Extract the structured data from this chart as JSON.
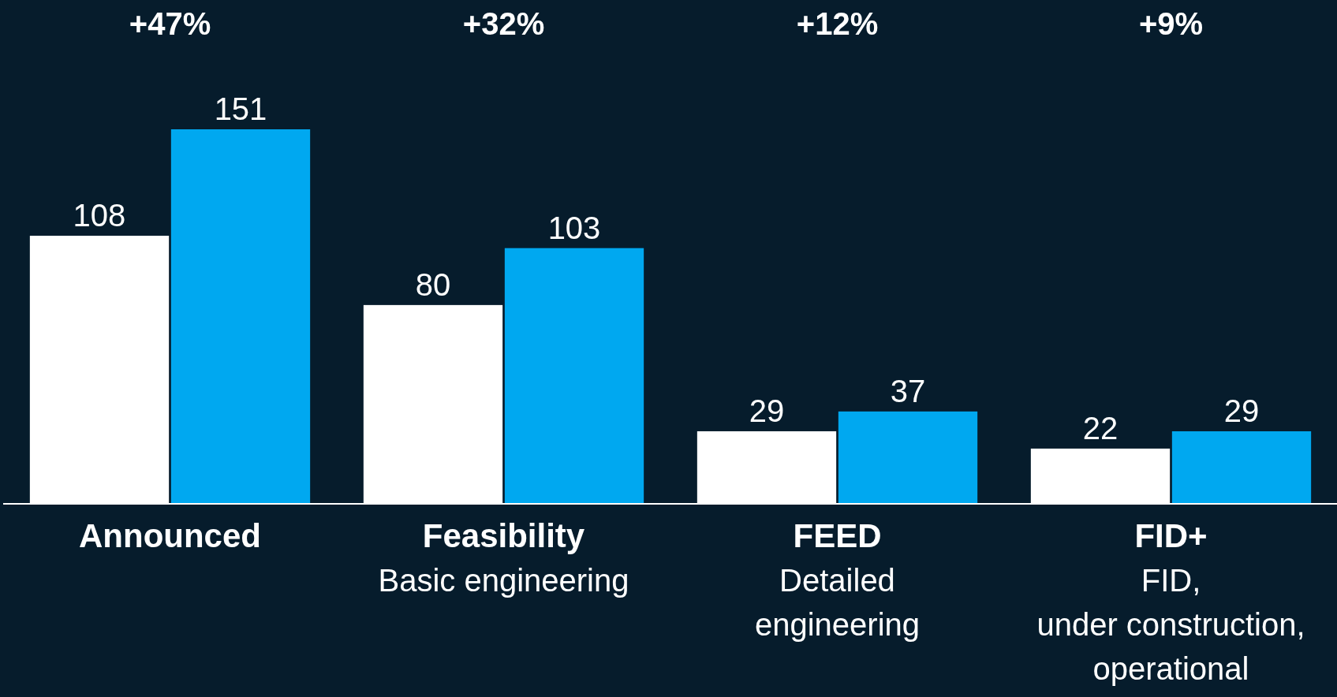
{
  "chart_data": {
    "type": "bar",
    "categories": [
      "Announced",
      "Feasibility\nBasic engineering",
      "FEED\nDetailed\nengineering",
      "FID+\nFID,\nunder construction,\noperational"
    ],
    "series": [
      {
        "color": "#ffffff",
        "values": [
          108,
          80,
          29,
          22
        ]
      },
      {
        "color": "#00a8f0",
        "values": [
          151,
          103,
          37,
          29
        ]
      }
    ],
    "data_labels": true,
    "annotations": [
      "+47%",
      "+32%",
      "+12%",
      "+9%"
    ]
  }
}
